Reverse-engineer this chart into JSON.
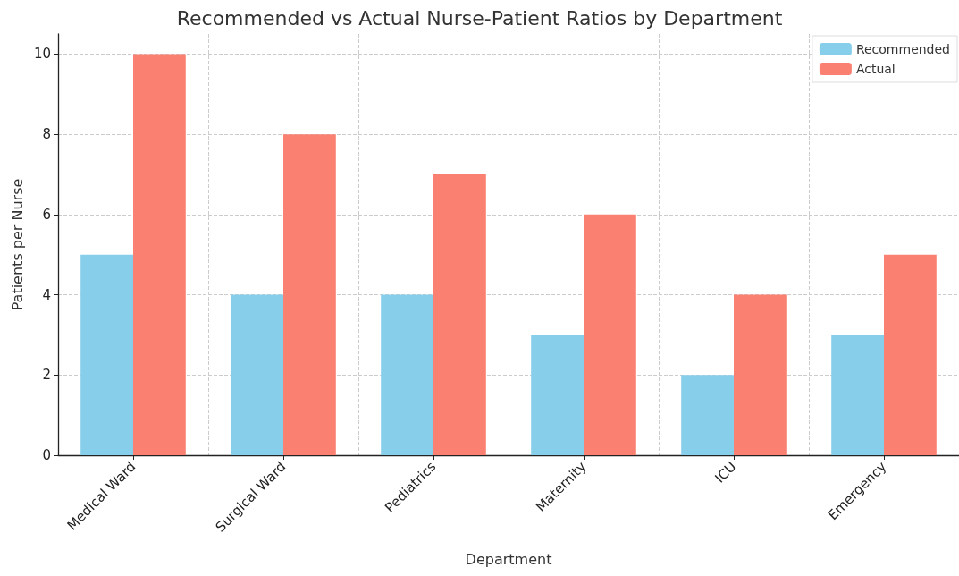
{
  "chart_data": {
    "type": "bar",
    "title": "Recommended vs Actual Nurse-Patient Ratios by Department",
    "xlabel": "Department",
    "ylabel": "Patients per Nurse",
    "categories": [
      "Medical Ward",
      "Surgical Ward",
      "Pediatrics",
      "Maternity",
      "ICU",
      "Emergency"
    ],
    "series": [
      {
        "name": "Recommended",
        "color": "#87ceeb",
        "values": [
          5,
          4,
          4,
          3,
          2,
          3
        ]
      },
      {
        "name": "Actual",
        "color": "#fa8072",
        "values": [
          10,
          8,
          7,
          6,
          4,
          5
        ]
      }
    ],
    "ylim": [
      0,
      10.5
    ],
    "yticks": [
      0,
      2,
      4,
      6,
      8,
      10
    ],
    "grid": true,
    "legend": "top right"
  }
}
